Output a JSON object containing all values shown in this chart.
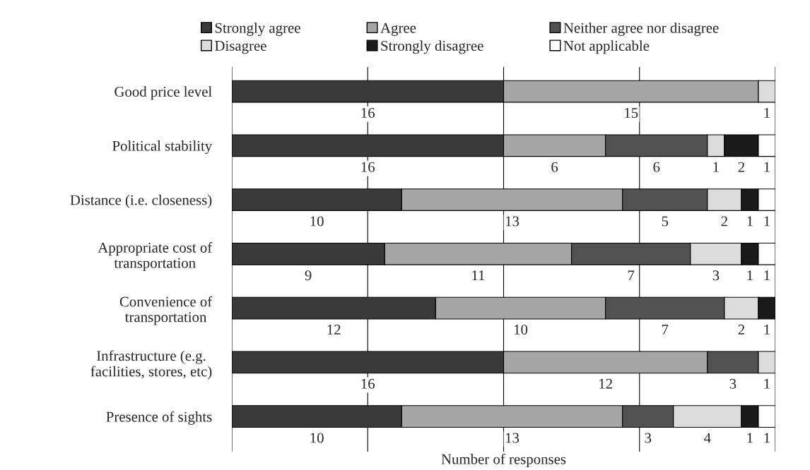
{
  "chart_data": {
    "type": "bar",
    "orientation": "horizontal",
    "stacked": true,
    "xlabel": "Number of responses",
    "categories": [
      "Good price level",
      "Political stability",
      "Distance (i.e. closeness)",
      "Appropriate cost of\ntransportation",
      "Convenience of\ntransportation",
      "Infrastructure (e.g.\nfacilities, stores, etc)",
      "Presence of sights"
    ],
    "series": [
      {
        "name": "Strongly agree",
        "color": "#3a3a3a",
        "values": [
          16,
          16,
          10,
          9,
          12,
          16,
          10
        ]
      },
      {
        "name": "Agree",
        "color": "#a6a6a6",
        "values": [
          15,
          6,
          13,
          11,
          10,
          12,
          13
        ]
      },
      {
        "name": "Neither agree nor disagree",
        "color": "#525252",
        "values": [
          null,
          6,
          5,
          7,
          7,
          3,
          3
        ]
      },
      {
        "name": "Disagree",
        "color": "#dcdcdc",
        "values": [
          1,
          1,
          2,
          3,
          2,
          1,
          4
        ]
      },
      {
        "name": "Strongly disagree",
        "color": "#1a1a1a",
        "values": [
          null,
          2,
          1,
          1,
          1,
          null,
          1
        ]
      },
      {
        "name": "Not applicable",
        "color": "#ffffff",
        "values": [
          null,
          1,
          1,
          1,
          null,
          null,
          1
        ]
      }
    ],
    "xlim": [
      0,
      32
    ],
    "xticks": [
      {
        "value": 0,
        "label": null
      },
      {
        "value": 8,
        "label": null
      },
      {
        "value": 16,
        "label": null
      },
      {
        "value": 24,
        "label": null
      },
      {
        "value": 32,
        "label": null
      }
    ],
    "grid": "x",
    "tick_labels": "y",
    "legend": "top",
    "data_labels": true
  }
}
